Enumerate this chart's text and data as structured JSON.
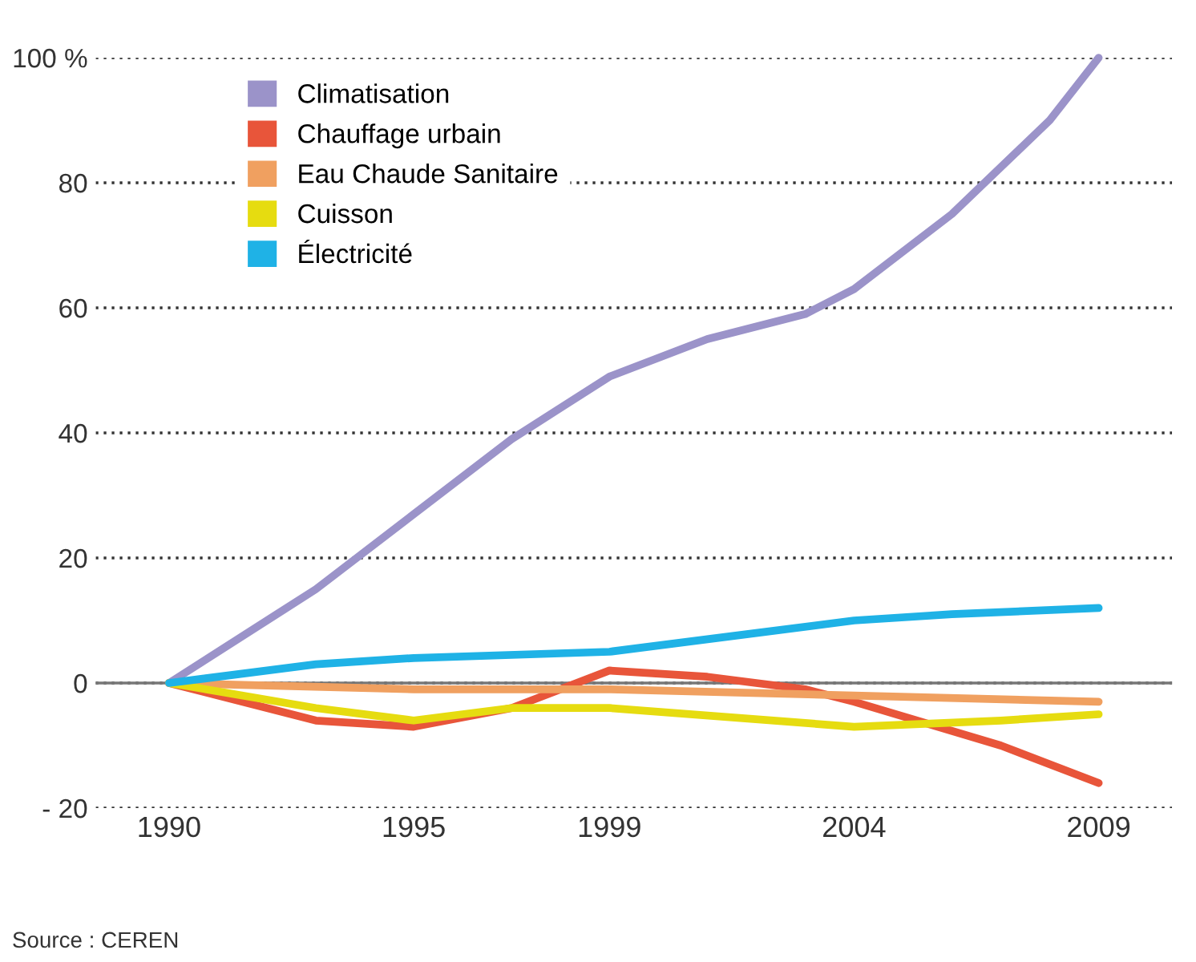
{
  "chart_data": {
    "type": "line",
    "ylim": [
      -20,
      100
    ],
    "yticks": [
      {
        "value": 100,
        "label": "100 %"
      },
      80,
      60,
      40,
      20,
      0,
      {
        "value": -20,
        "label": "- 20"
      }
    ],
    "xlim": [
      1988.5,
      2010.5
    ],
    "xticks": [
      1990,
      1995,
      1999,
      2004,
      2009
    ],
    "grid": "y",
    "legend": "top left",
    "marker": "none",
    "line_style": "solid",
    "ref_lines": [
      {
        "axis": "y",
        "value": 0,
        "color": "#777777",
        "line_style": "solid"
      }
    ],
    "annotations": [
      "Source : CEREN"
    ],
    "series": [
      {
        "name": "Climatisation",
        "color": "#9b93c9",
        "x": [
          1990,
          1993,
          1995,
          1997,
          1999,
          2001,
          2003,
          2004,
          2006,
          2008,
          2009
        ],
        "values": [
          0,
          15,
          27,
          39,
          49,
          55,
          59,
          63,
          75,
          90,
          100
        ]
      },
      {
        "name": "Chauffage urbain",
        "color": "#e8553a",
        "x": [
          1990,
          1993,
          1995,
          1997,
          1999,
          2001,
          2003,
          2004,
          2007,
          2009
        ],
        "values": [
          0,
          -6,
          -7,
          -4,
          2,
          1,
          -1,
          -3,
          -10,
          -16
        ]
      },
      {
        "name": "Eau Chaude Sanitaire",
        "color": "#f0a060",
        "x": [
          1990,
          1995,
          1999,
          2004,
          2009
        ],
        "values": [
          0,
          -1,
          -1,
          -2,
          -3
        ]
      },
      {
        "name": "Cuisson",
        "color": "#e6dc10",
        "x": [
          1990,
          1993,
          1995,
          1997,
          1999,
          2004,
          2007,
          2009
        ],
        "values": [
          0,
          -4,
          -6,
          -4,
          -4,
          -7,
          -6,
          -5
        ]
      },
      {
        "name": "Électricité",
        "color": "#1fb2e6",
        "x": [
          1990,
          1993,
          1995,
          1999,
          2002,
          2004,
          2006,
          2009
        ],
        "values": [
          0,
          3,
          4,
          5,
          8,
          10,
          11,
          12
        ]
      }
    ]
  }
}
